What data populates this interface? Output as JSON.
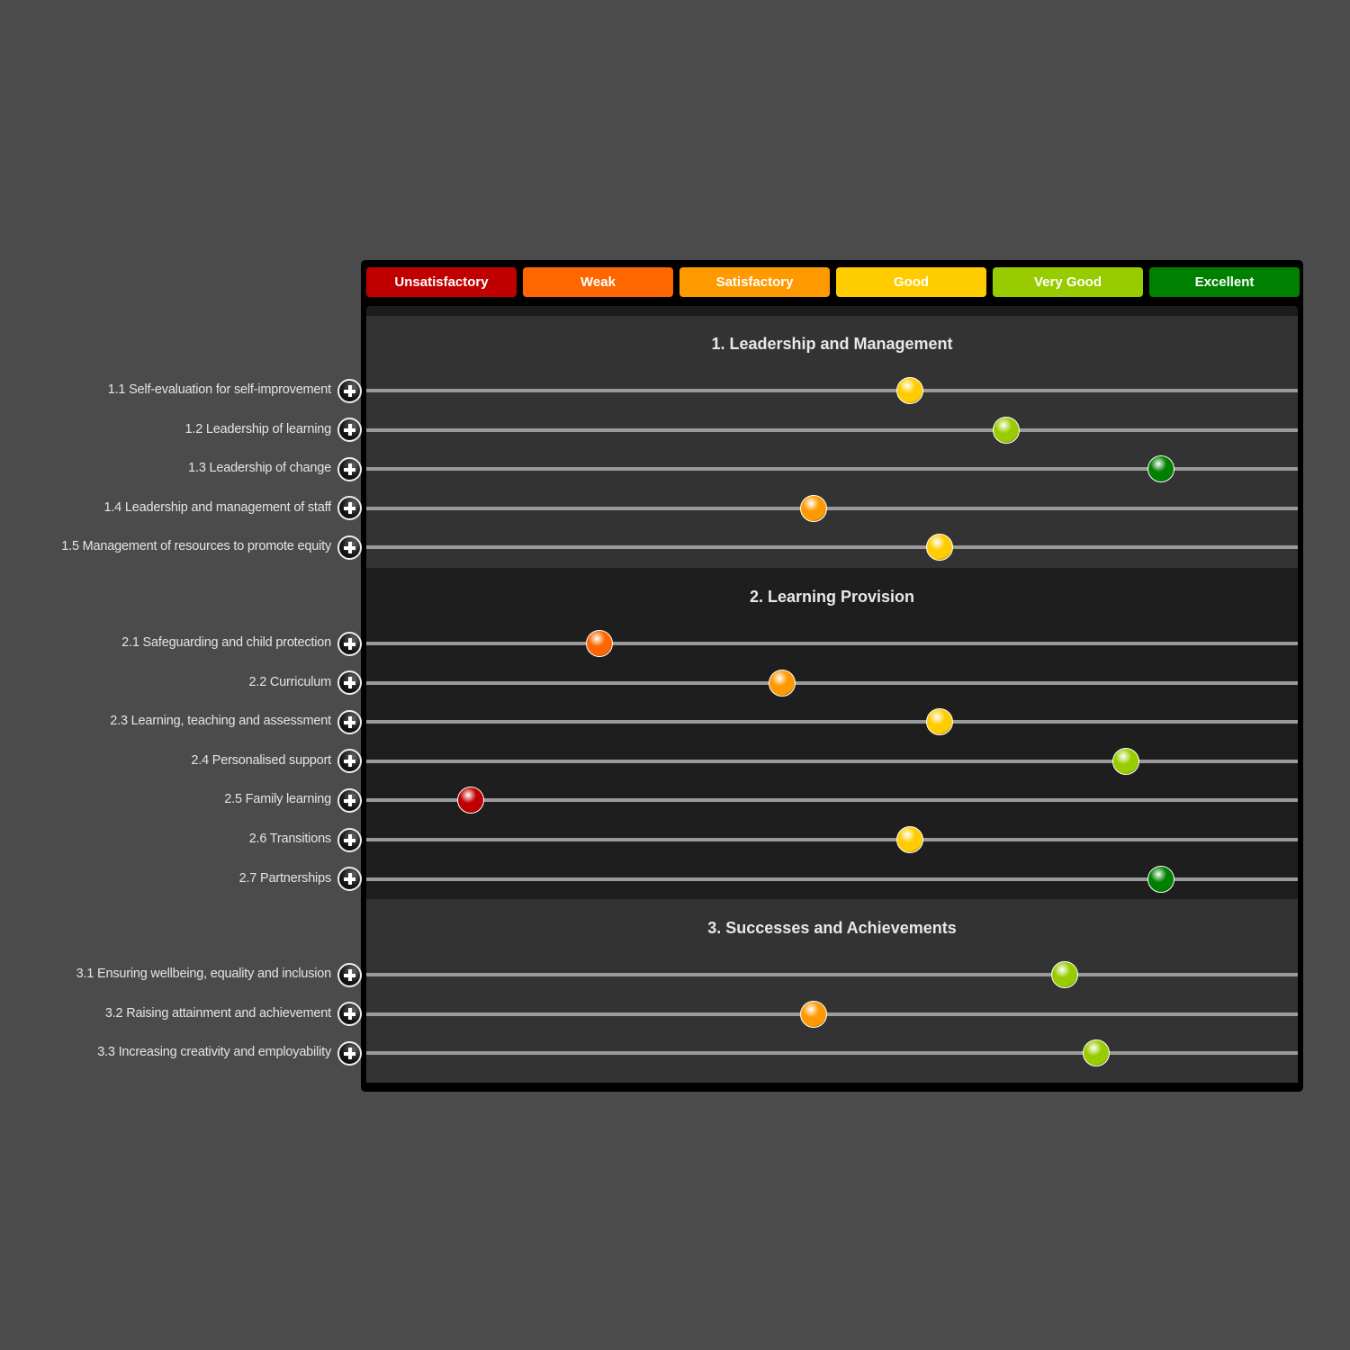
{
  "legend": [
    {
      "label": "Unsatisfactory",
      "color": "#c00000"
    },
    {
      "label": "Weak",
      "color": "#ff6600"
    },
    {
      "label": "Satisfactory",
      "color": "#ff9900"
    },
    {
      "label": "Good",
      "color": "#ffcc00"
    },
    {
      "label": "Very Good",
      "color": "#99cc00"
    },
    {
      "label": "Excellent",
      "color": "#008000"
    }
  ],
  "sections": [
    {
      "title": "1. Leadership and Management",
      "items": [
        {
          "label": "1.1 Self-evaluation for self-improvement",
          "rating": 4.0
        },
        {
          "label": "1.2 Leadership of learning",
          "rating": 4.62
        },
        {
          "label": "1.3 Leadership of change",
          "rating": 5.62
        },
        {
          "label": "1.4 Leadership and management of staff",
          "rating": 3.38
        },
        {
          "label": "1.5 Management of resources to promote equity",
          "rating": 4.19
        }
      ]
    },
    {
      "title": "2. Learning Provision",
      "items": [
        {
          "label": "2.1 Safeguarding and child protection",
          "rating": 2.0
        },
        {
          "label": "2.2 Curriculum",
          "rating": 3.18
        },
        {
          "label": "2.3 Learning, teaching and assessment",
          "rating": 4.19
        },
        {
          "label": "2.4 Personalised support",
          "rating": 5.39
        },
        {
          "label": "2.5 Family learning",
          "rating": 1.17
        },
        {
          "label": "2.6 Transitions",
          "rating": 4.0
        },
        {
          "label": "2.7 Partnerships",
          "rating": 5.62
        }
      ]
    },
    {
      "title": "3. Successes and Achievements",
      "items": [
        {
          "label": "3.1 Ensuring wellbeing, equality and inclusion",
          "rating": 5.0
        },
        {
          "label": "3.2 Raising attainment and achievement",
          "rating": 3.38
        },
        {
          "label": "3.3 Increasing creativity and employability",
          "rating": 5.2
        }
      ]
    }
  ],
  "scale": {
    "min": 1,
    "max": 6
  }
}
